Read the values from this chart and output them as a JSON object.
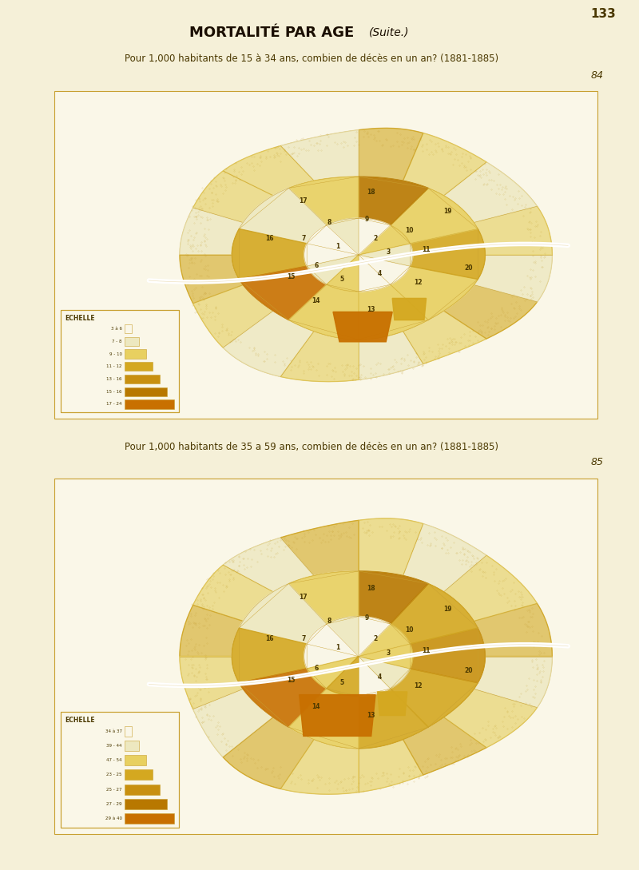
{
  "page_bg": "#f5f0d8",
  "page_number": "133",
  "main_title": "MORTALITÉ PAR AGE",
  "main_title_italic": "(Suite.)",
  "subtitle1": "Pour 1,000 habitants de 15 à 34 ans, combien de décès en un an? (1881-1885)",
  "map1_number": "84",
  "subtitle2": "Pour 1,000 habitants de 35 a 59 ans, combien de décès en un an? (1881-1885)",
  "map2_number": "85",
  "page_bg_color": "#f5f0d8",
  "cream": "#faf7e8",
  "hatch_very_light": "#ede8c0",
  "light_yellow": "#e8d060",
  "medium_yellow": "#d4a820",
  "gold": "#c89010",
  "dark_gold": "#b87800",
  "orange_gold": "#c87000",
  "border_color": "#c8a030",
  "text_color": "#4a3800",
  "legend1_items": [
    [
      "3 à 6",
      "#faf7e8"
    ],
    [
      "7 - 8",
      "#ede8c0"
    ],
    [
      "9 - 10",
      "#e8d060"
    ],
    [
      "11 - 12",
      "#d4a820"
    ],
    [
      "13 - 16",
      "#c89010"
    ],
    [
      "15 - 16",
      "#b87800"
    ],
    [
      "17 - 24",
      "#c87000"
    ]
  ],
  "legend2_items": [
    [
      "34 à 37",
      "#faf7e8"
    ],
    [
      "39 - 44",
      "#ede8c0"
    ],
    [
      "47 - 54",
      "#e8d060"
    ],
    [
      "23 - 25",
      "#d4a820"
    ],
    [
      "25 - 27",
      "#c89010"
    ],
    [
      "27 - 29",
      "#b87800"
    ],
    [
      "29 à 40",
      "#c87000"
    ]
  ]
}
